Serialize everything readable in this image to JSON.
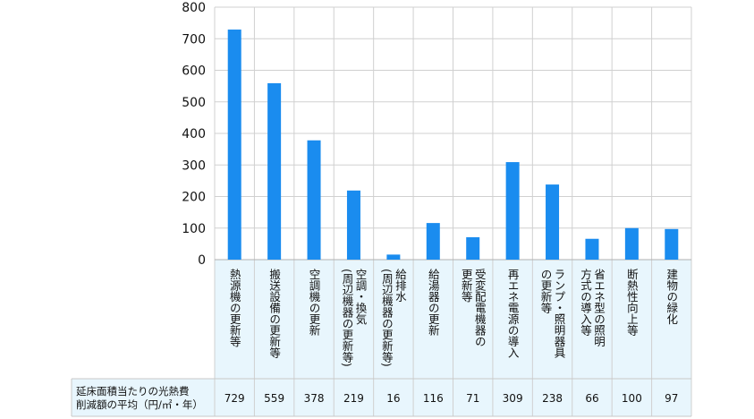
{
  "chart_data": {
    "type": "bar",
    "categories": [
      "熱源機の更新等",
      "搬送設備の更新等",
      "空調機の更新",
      "空調・換気(周辺機器の更新等)",
      "給排水(周辺機器の更新等)",
      "給湯器の更新",
      "受変配電機器の更新等",
      "再エネ電源の導入",
      "ランプ・照明器具の更新等",
      "省エネ型の照明方式の導入等",
      "断熱性向上等",
      "建物の緑化"
    ],
    "category_lines": [
      [
        "熱源機の更新等"
      ],
      [
        "搬送設備の更新等"
      ],
      [
        "空調機の更新"
      ],
      [
        "空調・換気",
        "(周辺機器の更新等)"
      ],
      [
        "給排水",
        "(周辺機器の更新等)"
      ],
      [
        "給湯器の更新"
      ],
      [
        "受変配電機器の",
        "更新等"
      ],
      [
        "再エネ電源の導入"
      ],
      [
        "ランプ・照明器具",
        "の更新等"
      ],
      [
        "省エネ型の照明",
        "方式の導入等"
      ],
      [
        "断熱性向上等"
      ],
      [
        "建物の緑化"
      ]
    ],
    "values": [
      729,
      559,
      378,
      219,
      16,
      116,
      71,
      309,
      238,
      66,
      100,
      97
    ],
    "ylim": [
      0,
      800
    ],
    "yticks": [
      0,
      100,
      200,
      300,
      400,
      500,
      600,
      700,
      800
    ],
    "grid": true,
    "bar_color": "#1a8cef",
    "table_bg": "#e8f6fd",
    "row_label": [
      "延床面積当たりの光熱費",
      "削減額の平均（円/㎡・年）"
    ]
  }
}
